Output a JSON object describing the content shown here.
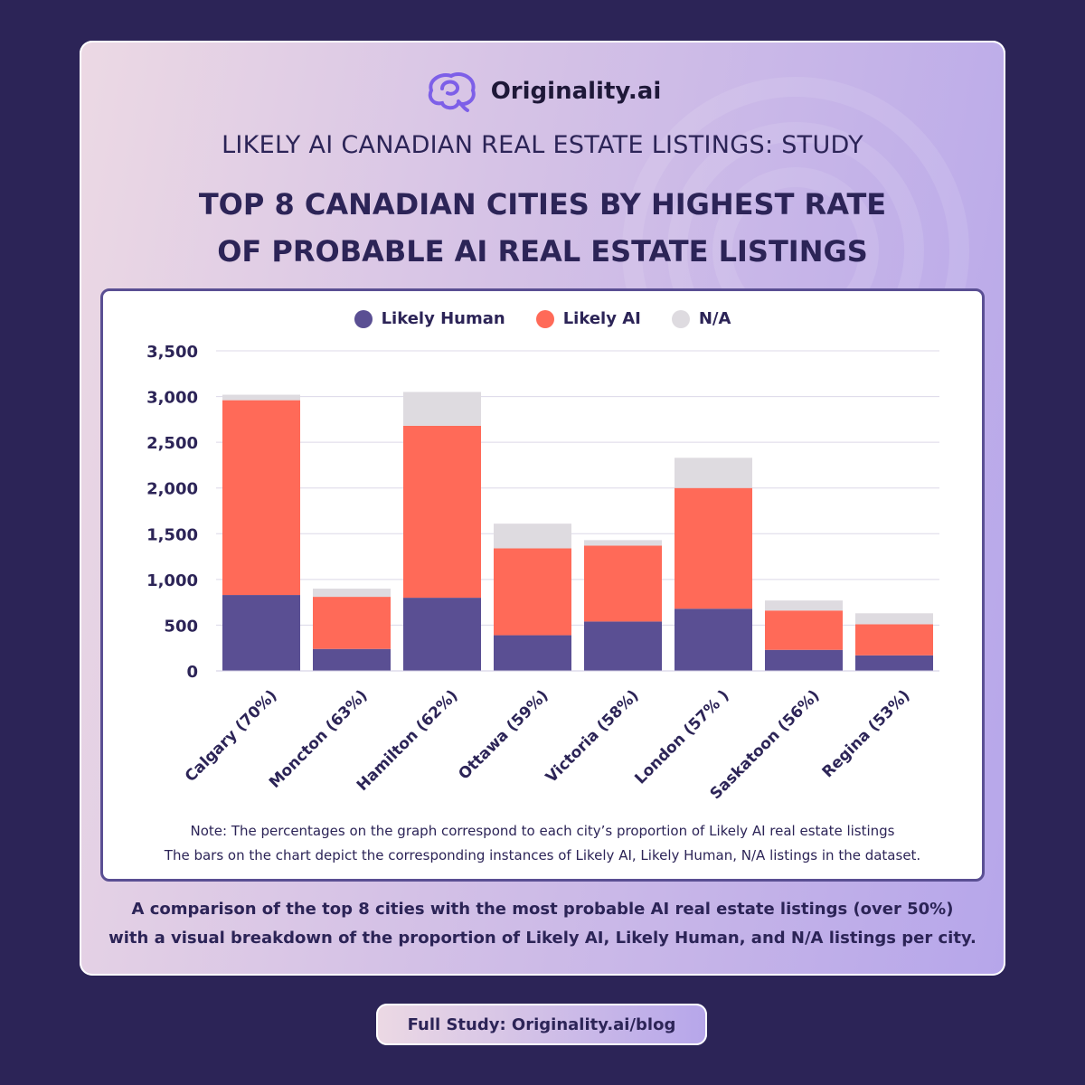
{
  "brand": {
    "name": "Originality.ai",
    "logo_icon": "brain-icon"
  },
  "kicker": "LIKELY AI CANADIAN REAL ESTATE LISTINGS: STUDY",
  "title_line1": "TOP 8 CANADIAN CITIES BY HIGHEST RATE",
  "title_line2": "OF PROBABLE AI REAL ESTATE LISTINGS",
  "note_line1": "Note: The percentages on the graph correspond to each city’s proportion of Likely AI real estate listings",
  "note_line2": "The bars on the chart depict the corresponding instances of Likely AI, Likely Human, N/A listings in the dataset.",
  "caption_line1": "A comparison of the top 8 cities with the most probable AI real estate listings (over 50%)",
  "caption_line2": "with a visual breakdown of the proportion of Likely AI, Likely Human, and N/A listings per city.",
  "footer": {
    "label": "Full Study: Originality.ai/blog"
  },
  "colors": {
    "likely_human": "#5a4f93",
    "likely_ai": "#ff6a58",
    "na": "#dedbe0",
    "text_dark": "#2c2457"
  },
  "chart_data": {
    "type": "bar",
    "stacked": true,
    "categories": [
      "Calgary (70%)",
      "Moncton (63%)",
      "Hamilton (62%)",
      "Ottawa (59%)",
      "Victoria (58%)",
      "London (57% )",
      "Saskatoon (56%)",
      "Regina (53%)"
    ],
    "series": [
      {
        "name": "Likely Human",
        "color": "#5a4f93",
        "values": [
          830,
          240,
          800,
          390,
          540,
          680,
          230,
          170
        ]
      },
      {
        "name": "Likely AI",
        "color": "#ff6a58",
        "values": [
          2130,
          570,
          1880,
          950,
          830,
          1320,
          430,
          340
        ]
      },
      {
        "name": "N/A",
        "color": "#dedbe0",
        "values": [
          60,
          90,
          370,
          270,
          60,
          330,
          110,
          120
        ]
      }
    ],
    "ylim": [
      0,
      3500
    ],
    "yticks": [
      0,
      500,
      1000,
      1500,
      2000,
      2500,
      3000,
      3500
    ],
    "ytick_labels": [
      "0",
      "500",
      "1,000",
      "1,500",
      "2,000",
      "2,500",
      "3,000",
      "3,500"
    ],
    "xlabel": "",
    "ylabel": "",
    "grid": true,
    "legend_position": "top-center"
  }
}
